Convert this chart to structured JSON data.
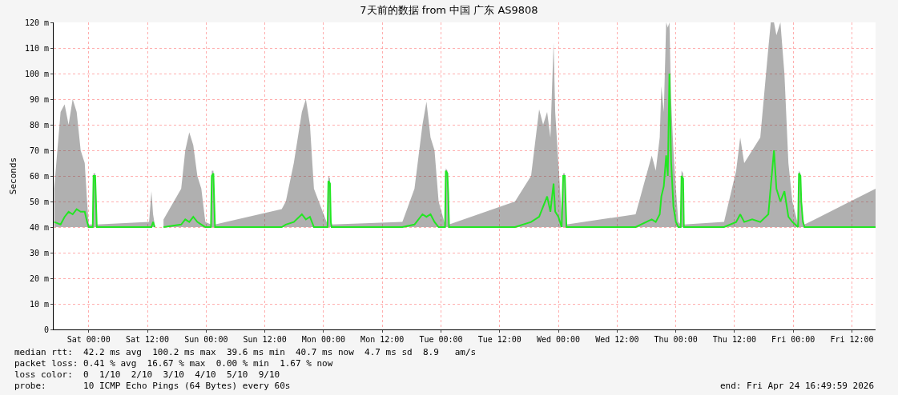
{
  "chart_data": {
    "type": "line",
    "title": "7天前的数据 from 中国 广东 AS9808",
    "ylabel": "Seconds",
    "x": [
      "--04-17T16:56",
      "--04-17T18:15",
      "--04-17T19:04",
      "--04-17T19:53",
      "--04-17T20:43",
      "--04-17T21:32",
      "--04-17T22:21",
      "--04-17T23:11",
      "--04-17T23:40",
      "--04-18T00:00",
      "--04-18T00:49",
      "--04-18T00:59",
      "--04-18T01:19",
      "--04-18T01:29",
      "--04-18T01:39",
      "--04-18T12:20",
      "--04-18T12:49",
      "--04-18T13:09",
      "--04-18T13:29",
      "--04-18T14:18",
      "--04-18T15:17",
      "--04-18T18:54",
      "--04-18T19:44",
      "--04-18T20:33",
      "--04-18T21:22",
      "--04-18T22:12",
      "--04-18T23:01",
      "--04-18T23:50",
      "--04-19T00:59",
      "--04-19T01:09",
      "--04-19T01:29",
      "--04-19T01:39",
      "--04-19T01:49",
      "--04-19T15:27",
      "--04-19T16:17",
      "--04-19T17:55",
      "--04-19T19:34",
      "--04-19T20:23",
      "--04-19T21:13",
      "--04-19T22:02",
      "--04-20T00:49",
      "--04-20T00:59",
      "--04-20T01:19",
      "--04-20T01:29",
      "--04-20T01:39",
      "--04-20T16:07",
      "--04-20T18:35",
      "--04-20T20:13",
      "--04-20T21:02",
      "--04-20T21:52",
      "--04-20T22:41",
      "--04-20T23:31",
      "--04-21T00:50",
      "--04-21T00:59",
      "--04-21T01:19",
      "--04-21T01:29",
      "--04-21T01:39",
      "--04-21T15:08",
      "--04-21T18:25",
      "--04-21T20:04",
      "--04-21T20:53",
      "--04-21T21:42",
      "--04-21T22:22",
      "--04-21T23:01",
      "--04-21T23:21",
      "--04-22T00:00",
      "--04-22T00:40",
      "--04-22T00:59",
      "--04-22T01:19",
      "--04-22T01:29",
      "--04-22T01:39",
      "--04-22T15:47",
      "--04-22T19:05",
      "--04-22T19:54",
      "--04-22T20:43",
      "--04-22T21:03",
      "--04-22T21:33",
      "--04-22T22:02",
      "--04-22T22:22",
      "--04-22T22:42",
      "--04-22T23:02",
      "--04-22T23:31",
      "--04-23T00:01",
      "--04-23T00:31",
      "--04-23T01:00",
      "--04-23T01:10",
      "--04-23T01:30",
      "--04-23T01:39",
      "--04-23T09:52",
      "--04-23T12:20",
      "--04-23T13:10",
      "--04-23T13:59",
      "--04-23T15:37",
      "--04-23T17:16",
      "--04-23T18:55",
      "--04-23T19:25",
      "--04-23T20:04",
      "--04-23T20:34",
      "--04-23T21:23",
      "--04-23T22:12",
      "--04-23T23:01",
      "--04-23T23:50",
      "--04-24T00:59",
      "--04-24T01:10",
      "--04-24T01:29",
      "--04-24T01:39",
      "--04-24T01:59",
      "--04-24T02:19",
      "--04-24T16:50"
    ],
    "series": [
      {
        "color": "#22e622",
        "values": [
          42,
          41,
          44,
          46,
          45,
          47,
          46,
          46,
          42,
          40,
          40,
          60,
          60,
          50,
          40,
          40,
          40,
          42,
          40,
          null,
          40,
          41,
          43,
          42,
          44,
          42,
          41,
          40,
          40,
          60,
          61,
          50,
          40,
          40,
          41,
          42,
          45,
          43,
          44,
          40,
          40,
          58,
          57,
          42,
          40,
          40,
          41,
          45,
          44,
          45,
          42,
          40,
          40,
          62,
          61,
          53,
          40,
          40,
          42,
          44,
          48,
          52,
          46,
          57,
          46,
          44,
          40,
          60,
          60,
          50,
          40,
          40,
          43,
          42,
          45,
          52,
          56,
          68,
          60,
          100,
          66,
          48,
          42,
          40,
          40,
          60,
          59,
          40,
          40,
          42,
          45,
          42,
          43,
          42,
          45,
          56,
          70,
          55,
          50,
          54,
          44,
          42,
          40,
          61,
          60,
          50,
          42,
          40,
          40
        ],
        "lower": [
          40,
          40,
          40,
          40,
          40,
          40,
          40,
          40,
          40,
          40,
          40,
          40,
          40,
          40,
          40,
          40,
          40,
          40,
          40,
          null,
          40,
          40,
          40,
          40,
          40,
          40,
          40,
          40,
          40,
          40,
          40,
          40,
          40,
          40,
          40,
          40,
          40,
          40,
          40,
          40,
          40,
          40,
          40,
          40,
          40,
          40,
          40,
          40,
          40,
          40,
          40,
          40,
          40,
          40,
          40,
          40,
          40,
          40,
          40,
          40,
          40,
          40,
          40,
          40,
          40,
          40,
          40,
          40,
          40,
          40,
          40,
          40,
          40,
          40,
          40,
          40,
          40,
          40,
          40,
          40,
          40,
          40,
          40,
          40,
          40,
          40,
          40,
          40,
          40,
          40,
          40,
          40,
          40,
          40,
          40,
          40,
          40,
          40,
          40,
          40,
          40,
          40,
          40,
          40,
          40,
          40,
          40,
          40,
          40
        ],
        "upper": [
          55,
          85,
          88,
          80,
          90,
          85,
          70,
          65,
          50,
          41,
          41,
          61,
          61,
          52,
          41,
          42,
          54,
          45,
          41,
          null,
          43,
          55,
          70,
          77,
          72,
          60,
          55,
          42,
          41,
          62,
          62,
          52,
          41,
          47,
          50,
          65,
          85,
          90,
          80,
          55,
          41,
          60,
          59,
          44,
          41,
          42,
          55,
          80,
          89,
          75,
          70,
          50,
          41,
          63,
          62,
          55,
          41,
          50,
          60,
          86,
          80,
          85,
          75,
          112,
          85,
          65,
          45,
          61,
          61,
          52,
          41,
          45,
          68,
          62,
          75,
          95,
          85,
          120,
          118,
          120,
          90,
          70,
          55,
          42,
          41,
          62,
          61,
          41,
          42,
          62,
          75,
          65,
          70,
          75,
          110,
          120,
          120,
          115,
          120,
          100,
          65,
          50,
          41,
          62,
          61,
          52,
          44,
          41,
          55
        ]
      }
    ],
    "xlim": [
      "--04-17T16:50",
      "--04-24T16:50"
    ],
    "xticks": [
      {
        "value": "--04-18T00:00",
        "label": "Sat 00:00"
      },
      {
        "value": "--04-18T12:00",
        "label": "Sat 12:00"
      },
      {
        "value": "--04-19T00:00",
        "label": "Sun 00:00"
      },
      {
        "value": "--04-19T12:00",
        "label": "Sun 12:00"
      },
      {
        "value": "--04-20T00:00",
        "label": "Mon 00:00"
      },
      {
        "value": "--04-20T12:00",
        "label": "Mon 12:00"
      },
      {
        "value": "--04-21T00:00",
        "label": "Tue 00:00"
      },
      {
        "value": "--04-21T12:00",
        "label": "Tue 12:00"
      },
      {
        "value": "--04-22T00:00",
        "label": "Wed 00:00"
      },
      {
        "value": "--04-22T12:00",
        "label": "Wed 12:00"
      },
      {
        "value": "--04-23T00:00",
        "label": "Thu 00:00"
      },
      {
        "value": "--04-23T12:00",
        "label": "Thu 12:00"
      },
      {
        "value": "--04-24T00:00",
        "label": "Fri 00:00"
      },
      {
        "value": "--04-24T12:00",
        "label": "Fri 12:00"
      }
    ],
    "ylim": [
      0,
      120
    ],
    "yticks": [
      0,
      {
        "value": 10,
        "label": "10 m"
      },
      {
        "value": 20,
        "label": "20 m"
      },
      {
        "value": 30,
        "label": "30 m"
      },
      {
        "value": 40,
        "label": "40 m"
      },
      {
        "value": 50,
        "label": "50 m"
      },
      {
        "value": 60,
        "label": "60 m"
      },
      {
        "value": 70,
        "label": "70 m"
      },
      {
        "value": 80,
        "label": "80 m"
      },
      {
        "value": 90,
        "label": "90 m"
      },
      {
        "value": 100,
        "label": "100 m"
      },
      {
        "value": 110,
        "label": "110 m"
      },
      {
        "value": 120,
        "label": "120 m"
      }
    ],
    "grid": true,
    "annotations": [
      "median rtt:  42.2 ms avg  100.2 ms max  39.6 ms min  40.7 ms now  4.7 ms sd  8.9   am/s",
      "packet loss: 0.41 % avg  16.67 % max  0.00 % min  1.67 % now",
      "loss color:  0  1/10  2/10  3/10  4/10  5/10  9/10",
      "probe:       10 ICMP Echo Pings (64 Bytes) every 60s",
      "end: Fri Apr 24 16:49:59 2026"
    ]
  }
}
